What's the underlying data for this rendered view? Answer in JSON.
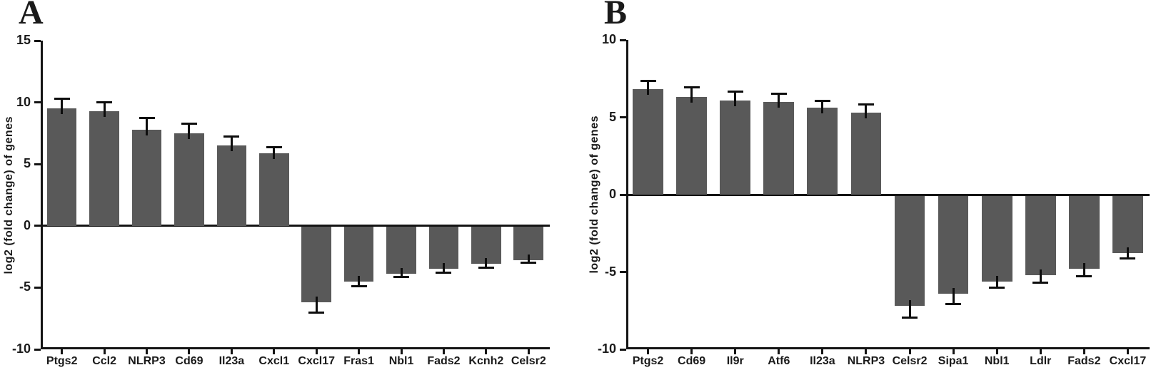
{
  "figure": {
    "background": "#ffffff",
    "bar_color": "#595959",
    "axis_color": "#141414",
    "error_bar_color": "#0d0d0d"
  },
  "chart_data": [
    {
      "type": "bar",
      "panel_label": "A",
      "title": "",
      "xlabel": "",
      "ylabel": "log2 (fold change) of genes",
      "ylim": [
        -10,
        15
      ],
      "yticks": [
        15,
        10,
        5,
        0,
        -5,
        -10
      ],
      "grid": false,
      "legend_position": "none",
      "categories": [
        "Ptgs2",
        "Ccl2",
        "NLRP3",
        "Cd69",
        "Il23a",
        "Cxcl1",
        "Cxcl17",
        "Fras1",
        "Nbl1",
        "Fads2",
        "Kcnh2",
        "Celsr2"
      ],
      "values": [
        9.5,
        9.3,
        7.8,
        7.5,
        6.5,
        5.9,
        -6.2,
        -4.5,
        -3.9,
        -3.5,
        -3.1,
        -2.8
      ],
      "errors": [
        0.9,
        0.8,
        1.0,
        0.85,
        0.8,
        0.55,
        0.9,
        0.5,
        0.35,
        0.4,
        0.35,
        0.3
      ]
    },
    {
      "type": "bar",
      "panel_label": "B",
      "title": "",
      "xlabel": "",
      "ylabel": "log2 (fold change) of genes",
      "ylim": [
        -10,
        10
      ],
      "yticks": [
        10,
        5,
        0,
        -5,
        -10
      ],
      "grid": false,
      "legend_position": "none",
      "categories": [
        "Ptgs2",
        "Cd69",
        "Il9r",
        "Atf6",
        "Il23a",
        "NLRP3",
        "Celsr2",
        "Sipa1",
        "Nbl1",
        "Ldlr",
        "Fads2",
        "Cxcl17"
      ],
      "values": [
        6.8,
        6.3,
        6.1,
        6.0,
        5.6,
        5.3,
        -7.2,
        -6.4,
        -5.6,
        -5.2,
        -4.8,
        -3.8
      ],
      "errors": [
        0.6,
        0.7,
        0.65,
        0.6,
        0.55,
        0.6,
        0.8,
        0.75,
        0.5,
        0.55,
        0.55,
        0.4
      ]
    }
  ]
}
